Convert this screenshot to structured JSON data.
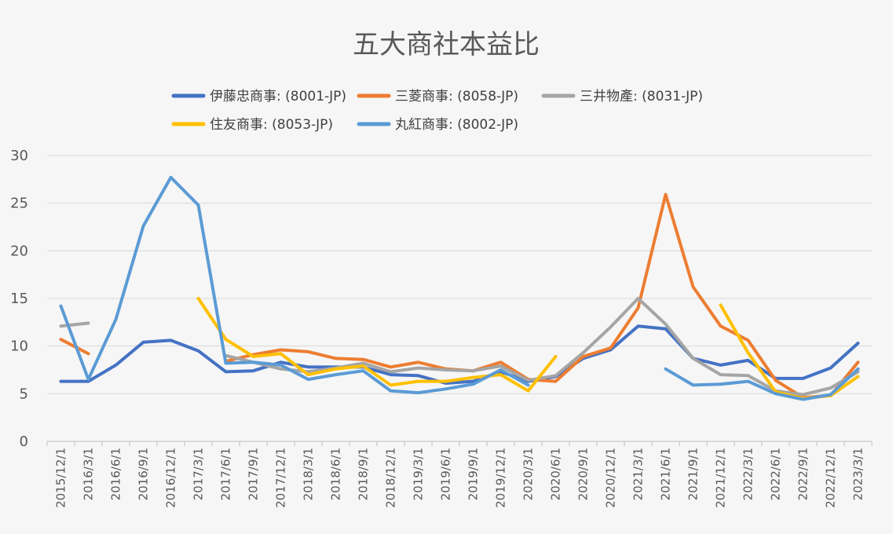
{
  "chart_data": {
    "type": "line",
    "title": "五大商社本益比",
    "xlabel": "",
    "ylabel": "",
    "ylim": [
      0,
      30
    ],
    "yticks": [
      0,
      5,
      10,
      15,
      20,
      25,
      30
    ],
    "grid": true,
    "legend_position": "top",
    "categories": [
      "2015/12/1",
      "2016/3/1",
      "2016/6/1",
      "2016/9/1",
      "2016/12/1",
      "2017/3/1",
      "2017/6/1",
      "2017/9/1",
      "2017/12/1",
      "2018/3/1",
      "2018/6/1",
      "2018/9/1",
      "2018/12/1",
      "2019/3/1",
      "2019/6/1",
      "2019/9/1",
      "2019/12/1",
      "2020/3/1",
      "2020/6/1",
      "2020/9/1",
      "2020/12/1",
      "2021/3/1",
      "2021/6/1",
      "2021/9/1",
      "2021/12/1",
      "2022/3/1",
      "2022/6/1",
      "2022/9/1",
      "2022/12/1",
      "2023/3/1"
    ],
    "series": [
      {
        "name": "伊藤忠商事: (8001-JP)",
        "color": "#4472c4",
        "values": [
          6.3,
          6.3,
          8.0,
          10.4,
          10.6,
          9.5,
          7.3,
          7.4,
          8.3,
          7.8,
          7.8,
          7.8,
          7.0,
          6.9,
          6.1,
          6.3,
          7.3,
          6.3,
          6.8,
          8.7,
          9.6,
          12.1,
          11.8,
          8.7,
          8.0,
          8.5,
          6.6,
          6.6,
          7.7,
          10.3
        ]
      },
      {
        "name": "三菱商事: (8058-JP)",
        "color": "#ed7d31",
        "values": [
          10.7,
          9.2,
          null,
          null,
          null,
          null,
          8.4,
          9.1,
          9.6,
          9.4,
          8.7,
          8.6,
          7.8,
          8.3,
          7.6,
          7.4,
          8.3,
          6.5,
          6.3,
          8.9,
          9.8,
          14.0,
          25.9,
          16.2,
          12.1,
          10.6,
          6.4,
          4.6,
          4.8,
          8.3
        ]
      },
      {
        "name": "三井物產: (8031-JP)",
        "color": "#a5a5a5",
        "values": [
          12.1,
          12.4,
          null,
          null,
          null,
          null,
          9.0,
          8.3,
          7.6,
          7.3,
          7.7,
          8.2,
          7.3,
          7.7,
          7.5,
          7.4,
          7.9,
          6.4,
          6.9,
          9.3,
          12.0,
          15.0,
          12.3,
          8.7,
          7.0,
          6.9,
          5.3,
          4.9,
          5.6,
          7.3
        ]
      },
      {
        "name": "住友商事: (8053-JP)",
        "color": "#ffc000",
        "values": [
          null,
          null,
          null,
          null,
          null,
          15.0,
          10.7,
          8.9,
          9.2,
          7.0,
          7.6,
          7.9,
          5.9,
          6.3,
          6.3,
          6.7,
          7.0,
          5.3,
          8.9,
          null,
          null,
          null,
          null,
          null,
          14.3,
          9.3,
          5.2,
          4.5,
          4.8,
          6.8
        ]
      },
      {
        "name": "丸紅商事: (8002-JP)",
        "color": "#5b9bd5",
        "values": [
          14.2,
          6.5,
          12.8,
          22.6,
          27.7,
          24.8,
          8.2,
          8.3,
          8.0,
          6.5,
          7.0,
          7.4,
          5.3,
          5.1,
          5.5,
          6.0,
          7.5,
          5.9,
          null,
          null,
          null,
          null,
          7.6,
          5.9,
          6.0,
          6.3,
          5.0,
          4.4,
          4.9,
          7.6
        ]
      }
    ]
  }
}
